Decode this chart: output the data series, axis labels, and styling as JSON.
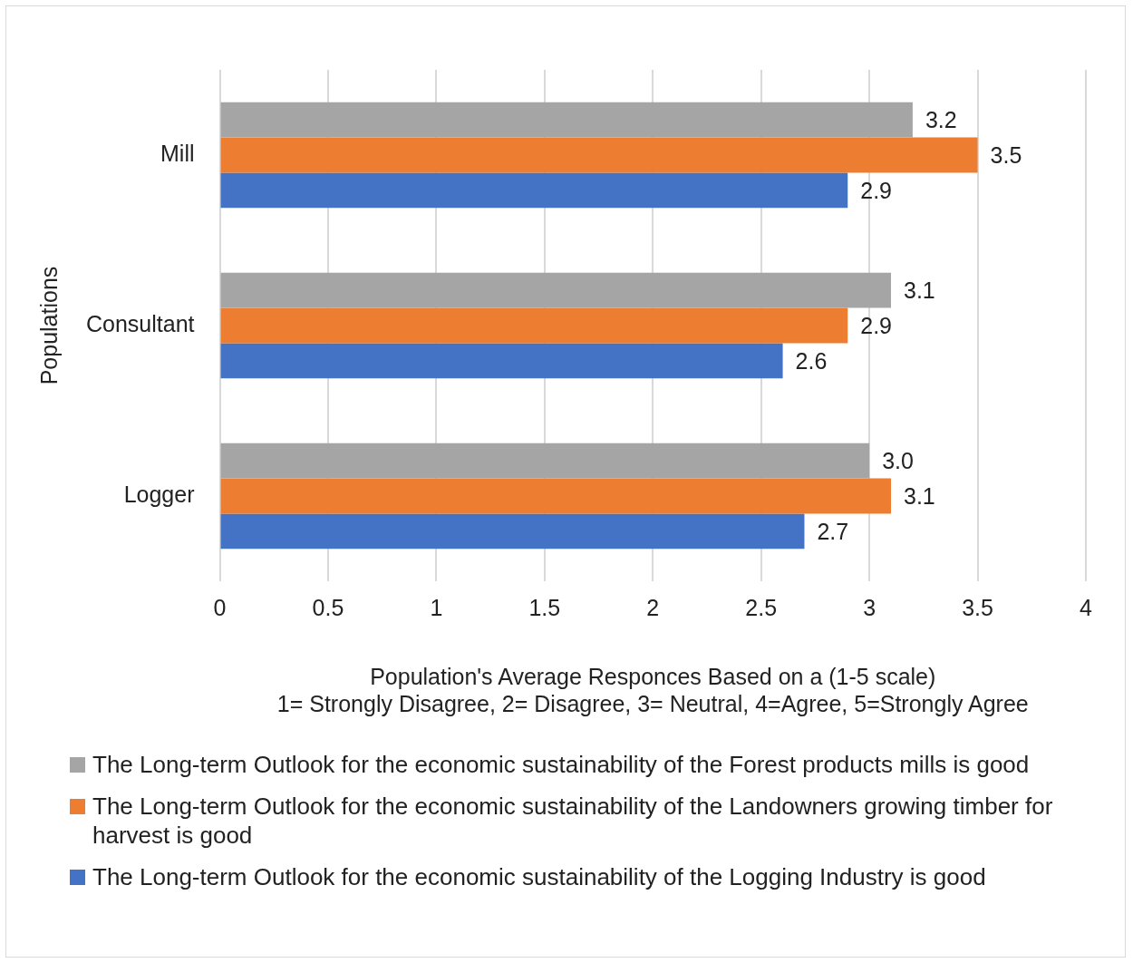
{
  "chart_data": {
    "type": "bar",
    "orientation": "horizontal",
    "categories": [
      "Mill",
      "Consultant",
      "Logger"
    ],
    "xlabel": "Population's Average Responces Based on a (1-5 scale)\n1= Strongly Disagree, 2= Disagree, 3= Neutral, 4=Agree, 5=Strongly Agree",
    "ylabel": "Populations",
    "xlim": [
      0,
      4
    ],
    "xticks": [
      0,
      0.5,
      1,
      1.5,
      2,
      2.5,
      3,
      3.5,
      4
    ],
    "grid": "x",
    "legend": "bottom",
    "series": [
      {
        "name": "The Long-term Outlook for the economic sustainability of the Forest products mills is good",
        "color": "#a5a5a5",
        "values": [
          3.2,
          3.1,
          3.0
        ],
        "value_labels": [
          "3.2",
          "3.1",
          "3.0"
        ]
      },
      {
        "name": "The Long-term Outlook for the economic sustainability of the Landowners growing timber for harvest is good",
        "color": "#ed7d31",
        "values": [
          3.5,
          2.9,
          3.1
        ],
        "value_labels": [
          "3.5",
          "2.9",
          "3.1"
        ]
      },
      {
        "name": "The Long-term Outlook for the economic sustainability of the Logging Industry is good",
        "color": "#4472c4",
        "values": [
          2.9,
          2.6,
          2.7
        ],
        "value_labels": [
          "2.9",
          "2.6",
          "2.7"
        ]
      }
    ]
  }
}
